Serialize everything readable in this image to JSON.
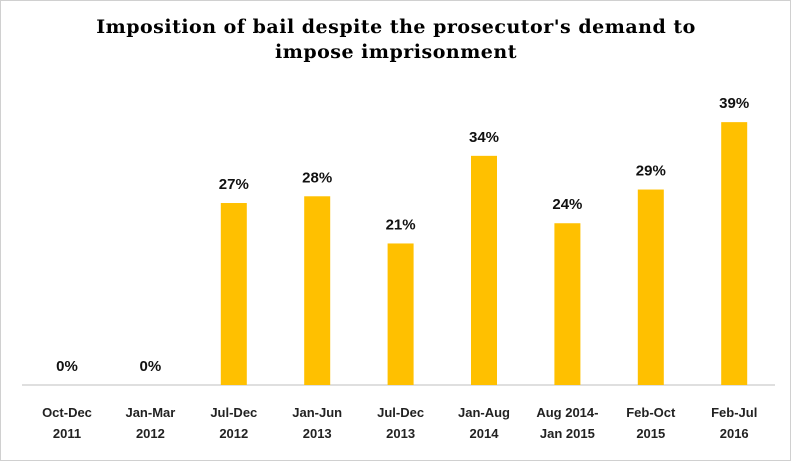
{
  "chart_data": {
    "type": "bar",
    "title": "Imposition of bail despite the prosecutor's demand to\nimpose imprisonment",
    "categories": [
      "Oct-Dec\n2011",
      "Jan-Mar\n2012",
      "Jul-Dec\n2012",
      "Jan-Jun\n2013",
      "Jul-Dec\n2013",
      "Jan-Aug\n2014",
      "Aug 2014-\nJan 2015",
      "Feb-Oct\n2015",
      "Feb-Jul\n2016"
    ],
    "values": [
      0,
      0,
      27,
      28,
      21,
      34,
      24,
      29,
      39
    ],
    "value_labels": [
      "0%",
      "0%",
      "27%",
      "28%",
      "21%",
      "34%",
      "24%",
      "29%",
      "39%"
    ],
    "color": "#ffc000"
  }
}
